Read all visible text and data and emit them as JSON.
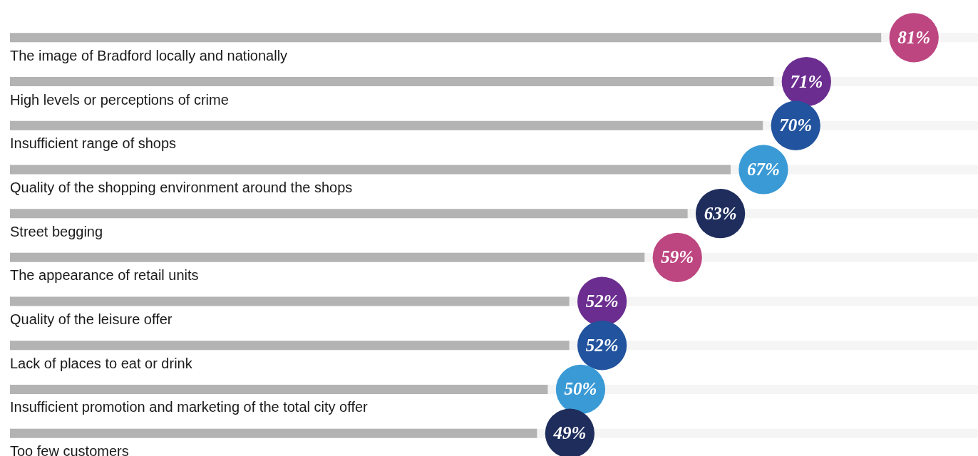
{
  "chart_data": {
    "type": "bar",
    "orientation": "horizontal",
    "categories": [
      "The image of Bradford locally and nationally",
      "High levels or perceptions of crime",
      "Insufficient range of shops",
      "Quality of the shopping environment around the shops",
      "Street begging",
      "The appearance of retail units",
      "Quality of the leisure offer",
      "Lack of places to eat or drink",
      "Insufficient promotion and marketing of the total city offer",
      "Too few customers"
    ],
    "series": [
      {
        "color": "#b3b3b3",
        "values": [
          81,
          71,
          70,
          67,
          63,
          59,
          52,
          52,
          50,
          49
        ],
        "value_labels": [
          "81%",
          "71%",
          "70%",
          "67%",
          "63%",
          "59%",
          "52%",
          "52%",
          "50%",
          "49%"
        ]
      }
    ]
  }
}
